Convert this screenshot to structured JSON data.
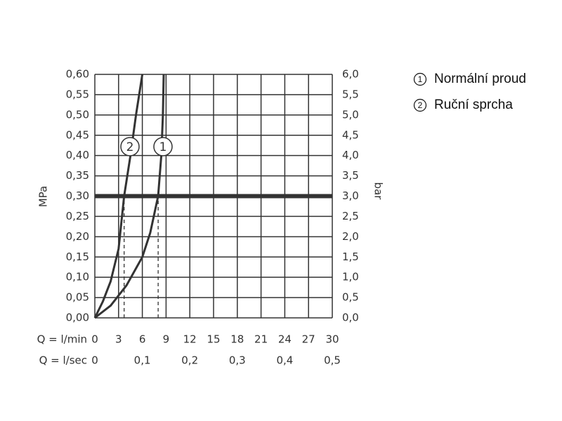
{
  "chart_data": {
    "type": "line",
    "y_label": "MPa",
    "y2_label": "bar",
    "x_label": "Q = l/min",
    "x2_label": "Q = l/sec",
    "xlim": [
      0,
      30
    ],
    "xticks": [
      0,
      3,
      6,
      9,
      12,
      15,
      18,
      21,
      24,
      27,
      30
    ],
    "x2lim": [
      0,
      0.5
    ],
    "x2ticks": [
      0,
      {
        "value": 0.1,
        "label": "0,1"
      },
      {
        "value": 0.2,
        "label": "0,2"
      },
      {
        "value": 0.3,
        "label": "0,3"
      },
      {
        "value": 0.4,
        "label": "0,4"
      },
      {
        "value": 0.5,
        "label": "0,5"
      }
    ],
    "ylim": [
      0,
      0.6
    ],
    "yticks": [
      {
        "value": 0,
        "label": "0,00"
      },
      {
        "value": 0.05,
        "label": "0,05"
      },
      {
        "value": 0.1,
        "label": "0,10"
      },
      {
        "value": 0.15,
        "label": "0,15"
      },
      {
        "value": 0.2,
        "label": "0,20"
      },
      {
        "value": 0.25,
        "label": "0,25"
      },
      {
        "value": 0.3,
        "label": "0,30"
      },
      {
        "value": 0.35,
        "label": "0,35"
      },
      {
        "value": 0.4,
        "label": "0,40"
      },
      {
        "value": 0.45,
        "label": "0,45"
      },
      {
        "value": 0.5,
        "label": "0,50"
      },
      {
        "value": 0.55,
        "label": "0,55"
      },
      {
        "value": 0.6,
        "label": "0,60"
      }
    ],
    "y2lim": [
      0,
      6
    ],
    "y2ticks": [
      {
        "value": 0,
        "label": "0,0"
      },
      {
        "value": 0.5,
        "label": "0,5"
      },
      {
        "value": 1,
        "label": "1,0"
      },
      {
        "value": 1.5,
        "label": "1,5"
      },
      {
        "value": 2,
        "label": "2,0"
      },
      {
        "value": 2.5,
        "label": "2,5"
      },
      {
        "value": 3,
        "label": "3,0"
      },
      {
        "value": 3.5,
        "label": "3,5"
      },
      {
        "value": 4,
        "label": "4,0"
      },
      {
        "value": 4.5,
        "label": "4,5"
      },
      {
        "value": 5,
        "label": "5,0"
      },
      {
        "value": 5.5,
        "label": "5,5"
      },
      {
        "value": 6,
        "label": "6,0"
      }
    ],
    "grid": true,
    "reference_y": 0.3,
    "series": [
      {
        "name": "Normální proud",
        "marker": "1",
        "color": "#333333",
        "dash_x": 8,
        "x": [
          0,
          2,
          4,
          6,
          7,
          8,
          8.4,
          8.6,
          8.7
        ],
        "values": [
          0,
          0.03,
          0.08,
          0.15,
          0.21,
          0.3,
          0.4,
          0.5,
          0.6
        ]
      },
      {
        "name": "Ruční sprcha",
        "marker": "2",
        "color": "#333333",
        "dash_x": 3.7,
        "x": [
          0,
          1,
          2,
          3,
          3.7,
          4.5,
          5.2,
          6
        ],
        "values": [
          0,
          0.04,
          0.09,
          0.17,
          0.3,
          0.4,
          0.5,
          0.6
        ]
      }
    ]
  }
}
